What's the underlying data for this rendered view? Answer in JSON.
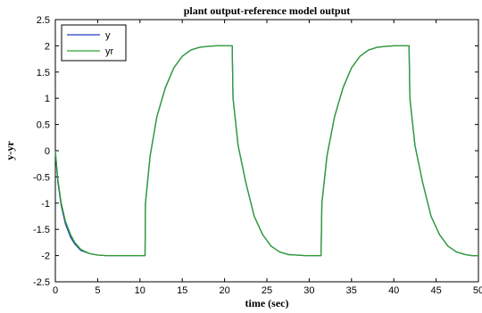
{
  "chart_data": {
    "type": "line",
    "title": "plant output-reference model output",
    "xlabel": "time (sec)",
    "ylabel": "y-yr",
    "xlim": [
      0,
      50
    ],
    "ylim": [
      -2.5,
      2.5
    ],
    "xticks": [
      "0",
      "5",
      "10",
      "15",
      "20",
      "25",
      "30",
      "35",
      "40",
      "45",
      "50"
    ],
    "yticks": [
      "-2.5",
      "-2",
      "-1.5",
      "-1",
      "-0.5",
      "0",
      "0.5",
      "1",
      "1.5",
      "2",
      "2.5"
    ],
    "grid": false,
    "legend": {
      "position": "top-left",
      "entries": [
        "y",
        "yr"
      ]
    },
    "series": [
      {
        "name": "y",
        "color": "#1f3fbf",
        "points": [
          [
            0,
            0
          ],
          [
            0.3,
            -0.6
          ],
          [
            0.7,
            -1.05
          ],
          [
            1.2,
            -1.4
          ],
          [
            1.8,
            -1.65
          ],
          [
            2.3,
            -1.78
          ],
          [
            3,
            -1.9
          ],
          [
            4,
            -1.96
          ],
          [
            5,
            -1.99
          ],
          [
            6,
            -2
          ],
          [
            10.5,
            -2
          ],
          [
            10.6,
            -2
          ],
          [
            10.65,
            -1.0
          ],
          [
            11.2,
            -0.1
          ],
          [
            12,
            0.65
          ],
          [
            13,
            1.2
          ],
          [
            14,
            1.58
          ],
          [
            15,
            1.8
          ],
          [
            16,
            1.92
          ],
          [
            17,
            1.97
          ],
          [
            18,
            1.99
          ],
          [
            19,
            2
          ],
          [
            20.9,
            2
          ],
          [
            21.0,
            1.0
          ],
          [
            21.6,
            0.1
          ],
          [
            22.5,
            -0.6
          ],
          [
            23.5,
            -1.25
          ],
          [
            24.5,
            -1.6
          ],
          [
            25.5,
            -1.82
          ],
          [
            26.5,
            -1.93
          ],
          [
            27.5,
            -1.98
          ],
          [
            28.5,
            -1.99
          ],
          [
            29.5,
            -2
          ],
          [
            31.4,
            -2
          ],
          [
            31.5,
            -1.0
          ],
          [
            32.1,
            -0.1
          ],
          [
            33,
            0.65
          ],
          [
            34,
            1.2
          ],
          [
            35,
            1.58
          ],
          [
            36,
            1.8
          ],
          [
            37,
            1.92
          ],
          [
            38,
            1.97
          ],
          [
            39,
            1.99
          ],
          [
            40,
            2
          ],
          [
            41.8,
            2
          ],
          [
            41.9,
            1.0
          ],
          [
            42.5,
            0.1
          ],
          [
            43.4,
            -0.6
          ],
          [
            44.4,
            -1.25
          ],
          [
            45.4,
            -1.6
          ],
          [
            46.4,
            -1.82
          ],
          [
            47.4,
            -1.93
          ],
          [
            48.4,
            -1.98
          ],
          [
            49.2,
            -2
          ],
          [
            50,
            -2
          ]
        ]
      },
      {
        "name": "yr",
        "color": "#2ea02e",
        "points": [
          [
            0,
            0
          ],
          [
            0.3,
            -0.55
          ],
          [
            0.7,
            -1.0
          ],
          [
            1.2,
            -1.35
          ],
          [
            1.8,
            -1.6
          ],
          [
            2.3,
            -1.75
          ],
          [
            3,
            -1.88
          ],
          [
            4,
            -1.96
          ],
          [
            5,
            -1.99
          ],
          [
            6,
            -2
          ],
          [
            10.5,
            -2
          ],
          [
            10.6,
            -2
          ],
          [
            10.65,
            -1.0
          ],
          [
            11.2,
            -0.1
          ],
          [
            12,
            0.65
          ],
          [
            13,
            1.2
          ],
          [
            14,
            1.58
          ],
          [
            15,
            1.8
          ],
          [
            16,
            1.92
          ],
          [
            17,
            1.97
          ],
          [
            18,
            1.99
          ],
          [
            19,
            2
          ],
          [
            20.9,
            2
          ],
          [
            21.0,
            1.0
          ],
          [
            21.6,
            0.1
          ],
          [
            22.5,
            -0.6
          ],
          [
            23.5,
            -1.25
          ],
          [
            24.5,
            -1.6
          ],
          [
            25.5,
            -1.82
          ],
          [
            26.5,
            -1.93
          ],
          [
            27.5,
            -1.98
          ],
          [
            28.5,
            -1.99
          ],
          [
            29.5,
            -2
          ],
          [
            31.4,
            -2
          ],
          [
            31.5,
            -1.0
          ],
          [
            32.1,
            -0.1
          ],
          [
            33,
            0.65
          ],
          [
            34,
            1.2
          ],
          [
            35,
            1.58
          ],
          [
            36,
            1.8
          ],
          [
            37,
            1.92
          ],
          [
            38,
            1.97
          ],
          [
            39,
            1.99
          ],
          [
            40,
            2
          ],
          [
            41.8,
            2
          ],
          [
            41.9,
            1.0
          ],
          [
            42.5,
            0.1
          ],
          [
            43.4,
            -0.6
          ],
          [
            44.4,
            -1.25
          ],
          [
            45.4,
            -1.6
          ],
          [
            46.4,
            -1.82
          ],
          [
            47.4,
            -1.93
          ],
          [
            48.4,
            -1.98
          ],
          [
            49.2,
            -2
          ],
          [
            50,
            -2
          ]
        ]
      }
    ]
  }
}
